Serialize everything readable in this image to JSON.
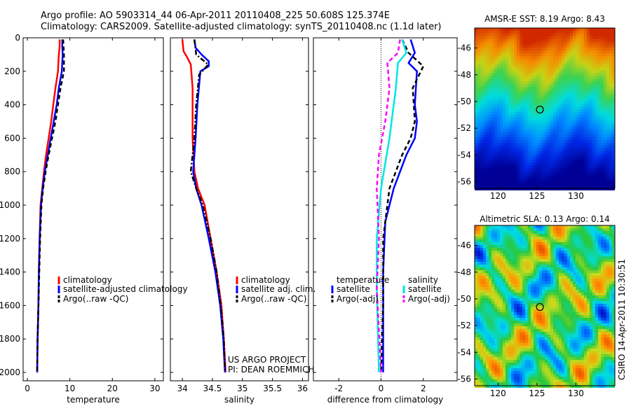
{
  "header": {
    "line1": "Argo profile: AO 5903314_44 06-Apr-2011 20110408_225 50.608S 125.374E",
    "line2": "Climatology: CARS2009. Satellite-adjusted climatology: synTS_20110408.nc (1.1d later)"
  },
  "side_note": "CSIRO 14-Apr-2011 10:30:51",
  "credit": [
    "US ARGO PROJECT",
    "PI: DEAN ROEMMICH"
  ],
  "colors": {
    "red": "#ff0000",
    "blue": "#0000ff",
    "black": "#000000",
    "cyan": "#00e5e5",
    "magenta": "#ff00ff"
  },
  "chart_data": [
    {
      "type": "line",
      "xlabel": "temperature",
      "xlim": [
        -1,
        32
      ],
      "ylim": [
        2050,
        0
      ],
      "y_reversed": true,
      "xticks": [
        0,
        10,
        20,
        30
      ],
      "yticks": [
        0,
        200,
        400,
        600,
        800,
        1000,
        1200,
        1400,
        1600,
        1800,
        2000
      ],
      "legend_position": "lower-right",
      "series": [
        {
          "name": "climatology",
          "color": "red",
          "dash": "solid",
          "points": [
            [
              7.6,
              10
            ],
            [
              7.6,
              50
            ],
            [
              7.4,
              100
            ],
            [
              7.2,
              200
            ],
            [
              6.6,
              300
            ],
            [
              6.1,
              400
            ],
            [
              5.6,
              500
            ],
            [
              5.0,
              600
            ],
            [
              4.4,
              700
            ],
            [
              3.9,
              800
            ],
            [
              3.5,
              900
            ],
            [
              3.1,
              1000
            ],
            [
              2.9,
              1200
            ],
            [
              2.7,
              1400
            ],
            [
              2.6,
              1600
            ],
            [
              2.4,
              1800
            ],
            [
              2.3,
              2000
            ]
          ]
        },
        {
          "name": "satellite-adjusted climatology",
          "color": "blue",
          "dash": "solid",
          "points": [
            [
              8.2,
              10
            ],
            [
              8.2,
              50
            ],
            [
              8.3,
              100
            ],
            [
              8.1,
              200
            ],
            [
              7.4,
              300
            ],
            [
              6.9,
              400
            ],
            [
              6.2,
              500
            ],
            [
              5.5,
              600
            ],
            [
              4.8,
              700
            ],
            [
              4.1,
              800
            ],
            [
              3.6,
              900
            ],
            [
              3.2,
              1000
            ],
            [
              2.9,
              1200
            ],
            [
              2.7,
              1400
            ],
            [
              2.6,
              1600
            ],
            [
              2.4,
              1800
            ],
            [
              2.3,
              2000
            ]
          ]
        },
        {
          "name": "Argo(..raw -QC)",
          "color": "black",
          "dash": "dash",
          "points": [
            [
              8.4,
              10
            ],
            [
              8.5,
              50
            ],
            [
              8.6,
              100
            ],
            [
              8.6,
              200
            ],
            [
              7.8,
              300
            ],
            [
              7.2,
              400
            ],
            [
              6.6,
              500
            ],
            [
              5.8,
              600
            ],
            [
              5.0,
              700
            ],
            [
              4.3,
              800
            ],
            [
              3.7,
              900
            ],
            [
              3.3,
              1000
            ],
            [
              3.0,
              1200
            ],
            [
              2.8,
              1400
            ],
            [
              2.6,
              1600
            ],
            [
              2.4,
              1800
            ],
            [
              2.3,
              2000
            ]
          ]
        }
      ]
    },
    {
      "type": "line",
      "xlabel": "salinity",
      "xlim": [
        33.8,
        36.1
      ],
      "ylim": [
        2050,
        0
      ],
      "y_reversed": true,
      "xticks": [
        34,
        34.5,
        35,
        35.5,
        36
      ],
      "yticks": [
        0,
        200,
        400,
        600,
        800,
        1000,
        1200,
        1400,
        1600,
        1800,
        2000
      ],
      "legend_position": "lower-right",
      "series": [
        {
          "name": "climatology",
          "color": "red",
          "dash": "solid",
          "points": [
            [
              34.0,
              10
            ],
            [
              34.02,
              80
            ],
            [
              34.07,
              110
            ],
            [
              34.14,
              160
            ],
            [
              34.17,
              300
            ],
            [
              34.17,
              600
            ],
            [
              34.2,
              800
            ],
            [
              34.26,
              900
            ],
            [
              34.37,
              1000
            ],
            [
              34.47,
              1200
            ],
            [
              34.57,
              1400
            ],
            [
              34.65,
              1600
            ],
            [
              34.69,
              1800
            ],
            [
              34.72,
              2000
            ]
          ]
        },
        {
          "name": "satellite adj. clim.",
          "color": "blue",
          "dash": "solid",
          "points": [
            [
              34.2,
              10
            ],
            [
              34.22,
              60
            ],
            [
              34.32,
              100
            ],
            [
              34.44,
              140
            ],
            [
              34.44,
              170
            ],
            [
              34.3,
              200
            ],
            [
              34.25,
              400
            ],
            [
              34.22,
              600
            ],
            [
              34.18,
              800
            ],
            [
              34.23,
              900
            ],
            [
              34.32,
              1000
            ],
            [
              34.44,
              1200
            ],
            [
              34.55,
              1400
            ],
            [
              34.63,
              1600
            ],
            [
              34.68,
              1800
            ],
            [
              34.71,
              2000
            ]
          ]
        },
        {
          "name": "Argo(..raw -QC)",
          "color": "black",
          "dash": "dashdot",
          "points": [
            [
              34.2,
              10
            ],
            [
              34.23,
              100
            ],
            [
              34.43,
              160
            ],
            [
              34.28,
              220
            ],
            [
              34.23,
              400
            ],
            [
              34.2,
              600
            ],
            [
              34.14,
              800
            ],
            [
              34.23,
              900
            ],
            [
              34.34,
              1000
            ],
            [
              34.47,
              1200
            ],
            [
              34.57,
              1400
            ],
            [
              34.64,
              1600
            ],
            [
              34.69,
              1800
            ],
            [
              34.71,
              2000
            ]
          ]
        }
      ]
    },
    {
      "type": "line",
      "xlabel": "difference from climatology",
      "xlim": [
        -3.2,
        3.6
      ],
      "ylim": [
        2050,
        0
      ],
      "y_reversed": true,
      "xticks": [
        -2,
        0,
        2
      ],
      "yticks": [
        0,
        200,
        400,
        600,
        800,
        1000,
        1200,
        1400,
        1600,
        1800,
        2000
      ],
      "legend_position": "lower",
      "legend_headers": [
        "temperature",
        "salinity"
      ],
      "series": [
        {
          "name": "satellite",
          "group": "temperature",
          "color": "blue",
          "dash": "solid",
          "points": [
            [
              1.4,
              10
            ],
            [
              1.6,
              90
            ],
            [
              1.3,
              150
            ],
            [
              1.7,
              200
            ],
            [
              1.6,
              400
            ],
            [
              1.7,
              500
            ],
            [
              1.6,
              600
            ],
            [
              1.2,
              700
            ],
            [
              0.6,
              900
            ],
            [
              0.2,
              1100
            ],
            [
              0.1,
              1400
            ],
            [
              0.1,
              1800
            ],
            [
              0.1,
              2000
            ]
          ]
        },
        {
          "name": "Argo(-adj)",
          "group": "temperature",
          "color": "black",
          "dash": "dash",
          "points": [
            [
              1.0,
              10
            ],
            [
              1.3,
              90
            ],
            [
              2.0,
              170
            ],
            [
              1.5,
              300
            ],
            [
              1.6,
              500
            ],
            [
              1.4,
              600
            ],
            [
              1.0,
              700
            ],
            [
              0.4,
              900
            ],
            [
              0.1,
              1200
            ],
            [
              0.1,
              1600
            ],
            [
              0.0,
              2000
            ]
          ]
        },
        {
          "name": "satellite",
          "group": "salinity",
          "color": "cyan",
          "dash": "solid",
          "points": [
            [
              1.0,
              10
            ],
            [
              1.2,
              90
            ],
            [
              0.8,
              150
            ],
            [
              0.7,
              300
            ],
            [
              0.6,
              400
            ],
            [
              0.4,
              600
            ],
            [
              0.0,
              900
            ],
            [
              -0.2,
              1200
            ],
            [
              -0.2,
              1500
            ],
            [
              -0.1,
              2000
            ]
          ]
        },
        {
          "name": "Argo(-adj)",
          "group": "salinity",
          "color": "magenta",
          "dash": "dash",
          "points": [
            [
              0.9,
              10
            ],
            [
              0.8,
              90
            ],
            [
              0.3,
              150
            ],
            [
              0.4,
              300
            ],
            [
              0.2,
              500
            ],
            [
              -0.1,
              700
            ],
            [
              -0.2,
              900
            ],
            [
              -0.1,
              1200
            ],
            [
              -0.2,
              1500
            ],
            [
              0.0,
              2000
            ]
          ]
        }
      ]
    },
    {
      "type": "heatmap",
      "title": "AMSR-E SST: 8.19 Argo: 8.43",
      "xlim": [
        117,
        135
      ],
      "ylim": [
        -56.5,
        -44.5
      ],
      "xticks": [
        120,
        125,
        130
      ],
      "yticks": [
        -46,
        -48,
        -50,
        -52,
        -54,
        -56
      ],
      "marker": {
        "lon": 125.374,
        "lat": -50.608
      }
    },
    {
      "type": "heatmap",
      "title": "Altimetric SLA: 0.13 Argo: 0.14",
      "xlim": [
        117,
        135
      ],
      "ylim": [
        -56.5,
        -44.5
      ],
      "xticks": [
        120,
        125,
        130
      ],
      "yticks": [
        -46,
        -48,
        -50,
        -52,
        -54,
        -56
      ],
      "marker": {
        "lon": 125.374,
        "lat": -50.608
      }
    }
  ]
}
